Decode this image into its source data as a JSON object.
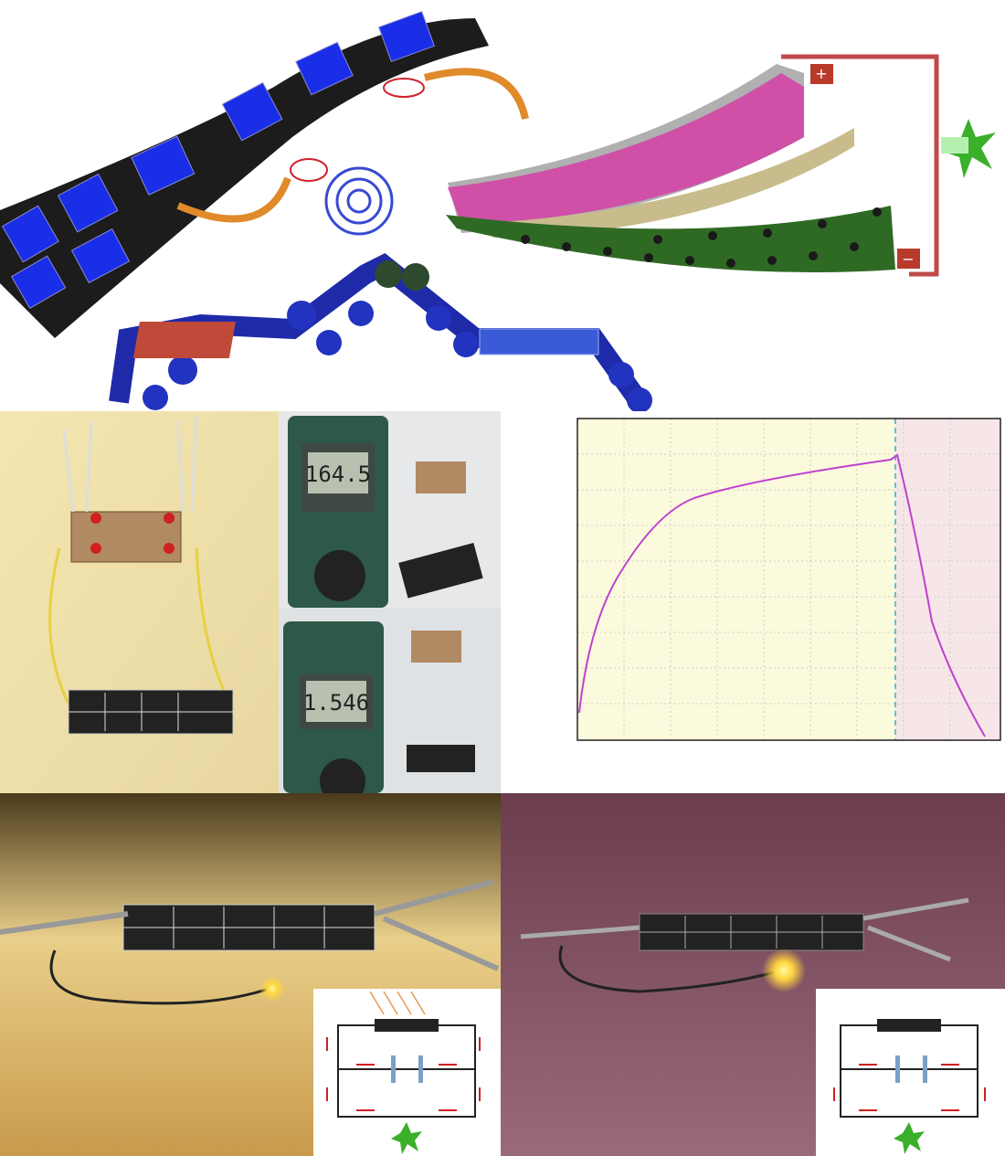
{
  "battery": {
    "positive": "+",
    "negative": "−"
  },
  "meters": [
    "164.5",
    "1.546"
  ]
}
